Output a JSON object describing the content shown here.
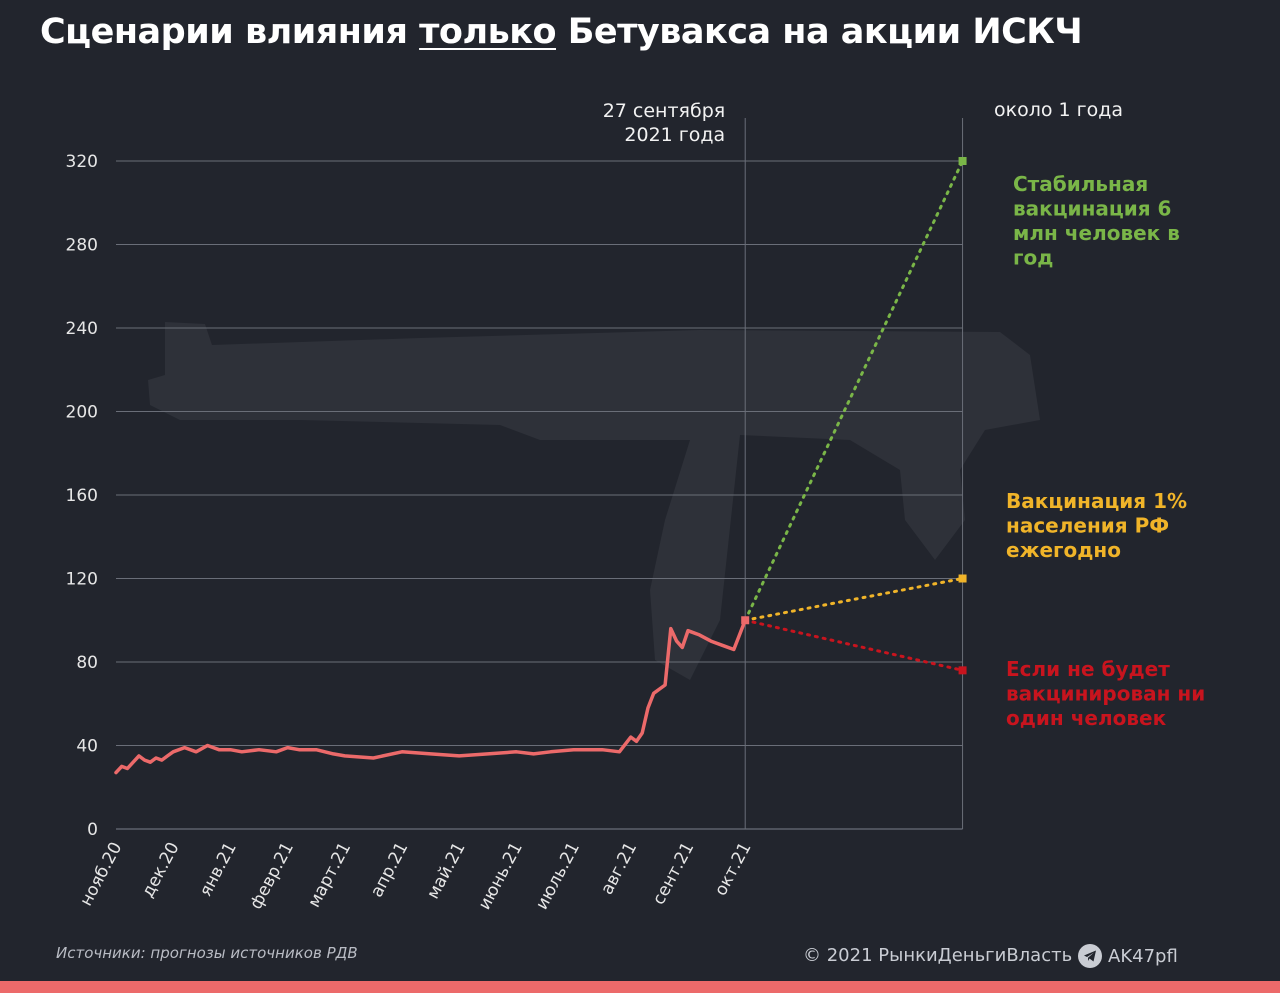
{
  "title": {
    "before": "Сценарии влияния ",
    "underlined": "только",
    "after": " Бетувакса на акции ИСКЧ"
  },
  "chart_data": {
    "type": "line",
    "x_categories": [
      "нояб.20",
      "дек.20",
      "янв.21",
      "февр.21",
      "март.21",
      "апр.21",
      "май.21",
      "июнь.21",
      "июль.21",
      "авг.21",
      "сент.21",
      "окт.21"
    ],
    "ylim": [
      0,
      320
    ],
    "yticks": [
      0,
      40,
      80,
      120,
      160,
      200,
      240,
      280,
      320
    ],
    "grid": true,
    "series": [
      {
        "name": "",
        "color": "#ec6a6a",
        "x": [
          0,
          0.1,
          0.2,
          0.4,
          0.5,
          0.6,
          0.7,
          0.8,
          0.9,
          1.0,
          1.2,
          1.4,
          1.6,
          1.8,
          2.0,
          2.2,
          2.5,
          2.8,
          3.0,
          3.2,
          3.5,
          3.8,
          4.0,
          4.5,
          5.0,
          5.5,
          6.0,
          6.5,
          7.0,
          7.3,
          7.6,
          8.0,
          8.5,
          8.8,
          9.0,
          9.1,
          9.2,
          9.3,
          9.4,
          9.5,
          9.6,
          9.7,
          9.8,
          9.9,
          10.0,
          10.2,
          10.4,
          10.6,
          10.8,
          11.0
        ],
        "values": [
          27,
          30,
          29,
          35,
          33,
          32,
          34,
          33,
          35,
          37,
          39,
          37,
          40,
          38,
          38,
          37,
          38,
          37,
          39,
          38,
          38,
          36,
          35,
          34,
          37,
          36,
          35,
          36,
          37,
          36,
          37,
          38,
          38,
          37,
          44,
          42,
          46,
          58,
          65,
          67,
          69,
          96,
          90,
          87,
          95,
          93,
          90,
          88,
          86,
          100
        ]
      }
    ],
    "marker_x": 11.0,
    "marker_label": [
      "27 сентября",
      "2021 года"
    ],
    "end_x": 14.8,
    "end_label": "около 1 года",
    "start_value": 100,
    "scenarios": [
      {
        "label": [
          "Стабильная",
          "вакцинация 6",
          "млн человек в",
          "год"
        ],
        "end_value": 320,
        "color": "#7ab648"
      },
      {
        "label": [
          "Вакцинация 1%",
          "населения РФ",
          "ежегодно"
        ],
        "end_value": 120,
        "color": "#f0b429"
      },
      {
        "label": [
          "Если не будет",
          "вакцинирован ни",
          "один человек"
        ],
        "end_value": 76,
        "color": "#c8141e"
      }
    ]
  },
  "footer": {
    "source": "Источники: прогнозы источников РДВ",
    "copyright": "© 2021  РынкиДеньгиВласть",
    "channel": "AK47pfl"
  },
  "colors": {
    "background": "#22252d",
    "grid": "#6a6e78",
    "bottom_bar": "#ec6a6a"
  }
}
